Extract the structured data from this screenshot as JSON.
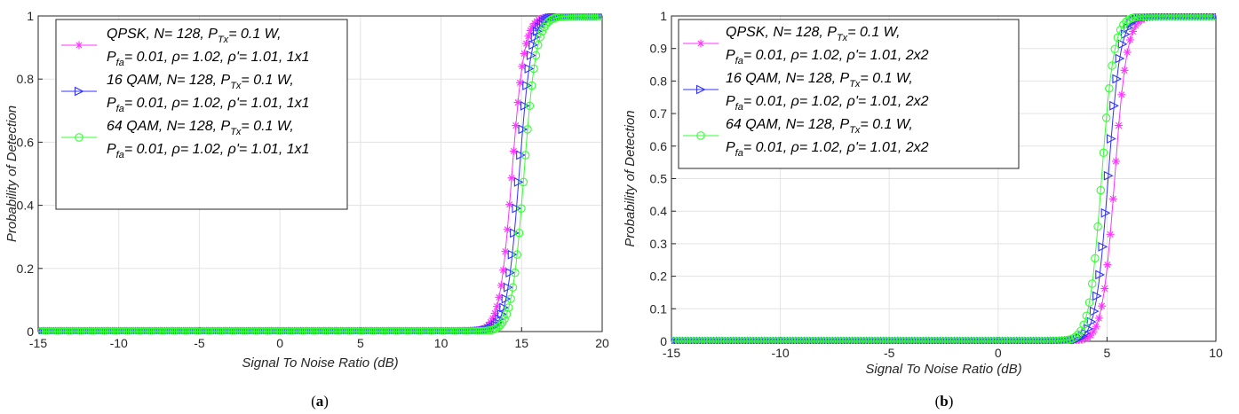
{
  "chart_data": [
    {
      "type": "line",
      "caption_letter": "a",
      "xlabel": "Signal To Noise Ratio (dB)",
      "ylabel": "Probability of Detection",
      "xlim": [
        -15,
        20
      ],
      "ylim": [
        0,
        1
      ],
      "xticks": [
        "-15",
        "-10",
        "-5",
        "0",
        "5",
        "10",
        "15",
        "20"
      ],
      "yticks": [
        "0",
        "0.2",
        "0.4",
        "0.6",
        "0.8",
        "1"
      ],
      "grid": true,
      "legend_position": "top-left",
      "series": [
        {
          "legend_lines": [
            [
              "QPSK, N= 128, P",
              "Tx",
              "= 0.1 W,"
            ],
            [
              "P",
              "fa",
              "= 0.01, ρ= 1.02, ρ'= 1.01, 1x1"
            ]
          ],
          "color": "#ff33ff",
          "marker": "asterisk",
          "midpoint": 14.4,
          "width": 0.38
        },
        {
          "legend_lines": [
            [
              "16 QAM, N= 128, P",
              "Tx",
              "= 0.1 W,"
            ],
            [
              "P",
              "fa",
              "= 0.01, ρ= 1.02, ρ'= 1.01, 1x1"
            ]
          ],
          "color": "#3333ff",
          "marker": "triangle-right",
          "midpoint": 14.85,
          "width": 0.38
        },
        {
          "legend_lines": [
            [
              "64 QAM, N= 128, P",
              "Tx",
              "= 0.1 W,"
            ],
            [
              "P",
              "fa",
              "= 0.01, ρ= 1.02, ρ'= 1.01, 1x1"
            ]
          ],
          "color": "#33ff33",
          "marker": "circle",
          "midpoint": 15.15,
          "width": 0.38
        }
      ]
    },
    {
      "type": "line",
      "caption_letter": "b",
      "xlabel": "Signal To Noise Ratio (dB)",
      "ylabel": "Probability of Detection",
      "xlim": [
        -15,
        10
      ],
      "ylim": [
        0,
        1
      ],
      "xticks": [
        "-15",
        "-10",
        "-5",
        "0",
        "5",
        "10"
      ],
      "yticks": [
        "0",
        "0.1",
        "0.2",
        "0.3",
        "0.4",
        "0.5",
        "0.6",
        "0.7",
        "0.8",
        "0.9",
        "1"
      ],
      "grid": true,
      "legend_position": "top-left",
      "series": [
        {
          "legend_lines": [
            [
              "QPSK, N= 128, P",
              "Tx",
              "= 0.1 W,"
            ],
            [
              "P",
              "fa",
              "= 0.01, ρ= 1.02, ρ'= 1.01, 2x2"
            ]
          ],
          "color": "#ff33ff",
          "marker": "asterisk",
          "midpoint": 5.35,
          "width": 0.28
        },
        {
          "legend_lines": [
            [
              "16 QAM, N= 128, P",
              "Tx",
              "= 0.1 W,"
            ],
            [
              "P",
              "fa",
              "= 0.01, ρ= 1.02, ρ'= 1.01, 2x2"
            ]
          ],
          "color": "#3333ff",
          "marker": "triangle-right",
          "midpoint": 5.05,
          "width": 0.28
        },
        {
          "legend_lines": [
            [
              "64 QAM, N= 128, P",
              "Tx",
              "= 0.1 W,"
            ],
            [
              "P",
              "fa",
              "= 0.01, ρ= 1.02, ρ'= 1.01, 2x2"
            ]
          ],
          "color": "#33ff33",
          "marker": "circle",
          "midpoint": 4.75,
          "width": 0.28
        }
      ]
    }
  ]
}
